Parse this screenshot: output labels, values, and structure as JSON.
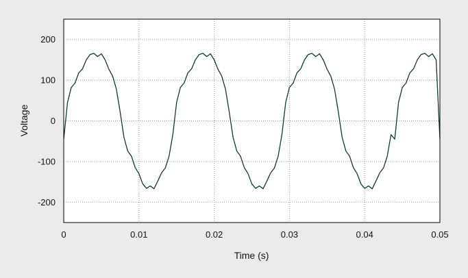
{
  "chart_data": {
    "type": "line",
    "title": "",
    "xlabel": "Time (s)",
    "ylabel": "Voltage",
    "xlim": [
      0,
      0.05
    ],
    "ylim": [
      -250,
      250
    ],
    "x_ticks": [
      0,
      0.01,
      0.02,
      0.03,
      0.04,
      0.05
    ],
    "x_tick_labels": [
      "0",
      "0.01",
      "0.02",
      "0.03",
      "0.04",
      "0.05"
    ],
    "y_ticks": [
      200,
      100,
      0,
      -100,
      -200
    ],
    "y_tick_labels": [
      "200",
      "100",
      "0",
      "-100",
      "-200"
    ],
    "grid": true,
    "grid_style": "dotted",
    "legend": "none",
    "series": [
      {
        "color": "#0b3b2e",
        "x": [
          0,
          0.0005,
          0.001,
          0.0015,
          0.002,
          0.0025,
          0.003,
          0.0035,
          0.004,
          0.0045,
          0.005,
          0.0055,
          0.006,
          0.0065,
          0.007,
          0.0075,
          0.008,
          0.0085,
          0.009,
          0.0095,
          0.01,
          0.0105,
          0.011,
          0.0115,
          0.012,
          0.0125,
          0.013,
          0.0135,
          0.014,
          0.0145,
          0.015,
          0.0155,
          0.016,
          0.0165,
          0.017,
          0.0175,
          0.018,
          0.0185,
          0.019,
          0.0195,
          0.02,
          0.0205,
          0.021,
          0.0215,
          0.022,
          0.0225,
          0.023,
          0.0235,
          0.024,
          0.0245,
          0.025,
          0.0255,
          0.026,
          0.0265,
          0.027,
          0.0275,
          0.028,
          0.0285,
          0.029,
          0.0295,
          0.03,
          0.0305,
          0.031,
          0.0315,
          0.032,
          0.0325,
          0.033,
          0.0335,
          0.034,
          0.0345,
          0.035,
          0.0355,
          0.036,
          0.0365,
          0.037,
          0.0375,
          0.038,
          0.0385,
          0.039,
          0.0395,
          0.04,
          0.0405,
          0.041,
          0.0415,
          0.042,
          0.0425,
          0.043,
          0.0435,
          0.044,
          0.0445,
          0.045,
          0.0455,
          0.046,
          0.0465,
          0.047,
          0.0475,
          0.048,
          0.0485,
          0.049,
          0.0495,
          0.05
        ],
        "y": [
          -45,
          45,
          82,
          93,
          118,
          128,
          150,
          163,
          166,
          158,
          165,
          150,
          127,
          110,
          78,
          22,
          -40,
          -74,
          -87,
          -115,
          -130,
          -155,
          -166,
          -160,
          -167,
          -148,
          -128,
          -116,
          -87,
          -34,
          45,
          82,
          93,
          118,
          128,
          150,
          163,
          166,
          158,
          165,
          150,
          127,
          110,
          78,
          22,
          -40,
          -74,
          -87,
          -115,
          -130,
          -155,
          -166,
          -160,
          -167,
          -148,
          -128,
          -116,
          -87,
          -34,
          45,
          82,
          93,
          118,
          128,
          150,
          163,
          166,
          158,
          165,
          150,
          127,
          110,
          78,
          22,
          -40,
          -74,
          -87,
          -115,
          -130,
          -155,
          -166,
          -160,
          -167,
          -148,
          -128,
          -116,
          -87,
          -34,
          -45,
          45,
          82,
          93,
          118,
          128,
          150,
          163,
          166,
          158,
          165,
          150,
          -45
        ]
      }
    ]
  }
}
